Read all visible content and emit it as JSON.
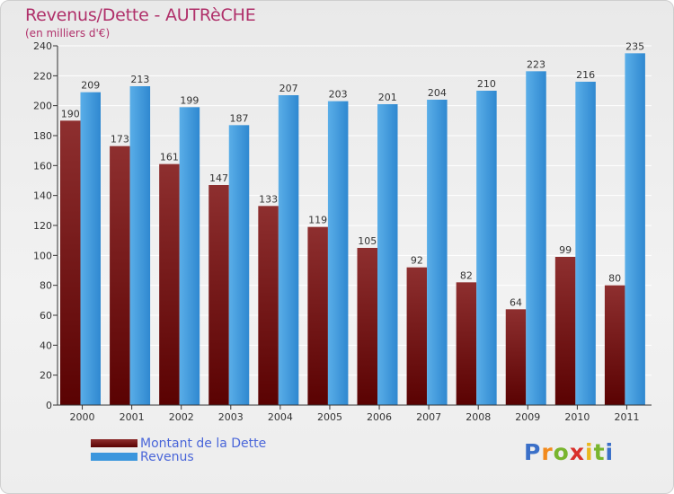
{
  "title": "Revenus/Dette - AUTRèCHE",
  "subtitle": "(en milliers d'€)",
  "legend": [
    {
      "label": "Montant de la Dette",
      "color": "#6e0e0e"
    },
    {
      "label": "Revenus",
      "color": "#3b96dd"
    }
  ],
  "logo": {
    "letters": [
      "P",
      "r",
      "o",
      "x",
      "i",
      "t",
      "i"
    ],
    "colors": [
      "#3a6fc8",
      "#f28a1c",
      "#79b52e",
      "#d9302b",
      "#e9b81e",
      "#79b52e",
      "#3a6fc8"
    ]
  },
  "chart_data": {
    "type": "bar",
    "categories": [
      "2000",
      "2001",
      "2002",
      "2003",
      "2004",
      "2005",
      "2006",
      "2007",
      "2008",
      "2009",
      "2010",
      "2011"
    ],
    "series": [
      {
        "name": "Montant de la Dette",
        "color": "#7a1c1c",
        "values": [
          190,
          173,
          161,
          147,
          133,
          119,
          105,
          92,
          82,
          64,
          99,
          80
        ]
      },
      {
        "name": "Revenus",
        "color": "#3b96dd",
        "values": [
          209,
          213,
          199,
          187,
          207,
          203,
          201,
          204,
          210,
          223,
          216,
          235
        ]
      }
    ],
    "ylim": [
      0,
      240
    ],
    "yticks": [
      0,
      20,
      40,
      60,
      80,
      100,
      120,
      140,
      160,
      180,
      200,
      220,
      240
    ],
    "grid": true,
    "legend_position": "bottom-left"
  }
}
